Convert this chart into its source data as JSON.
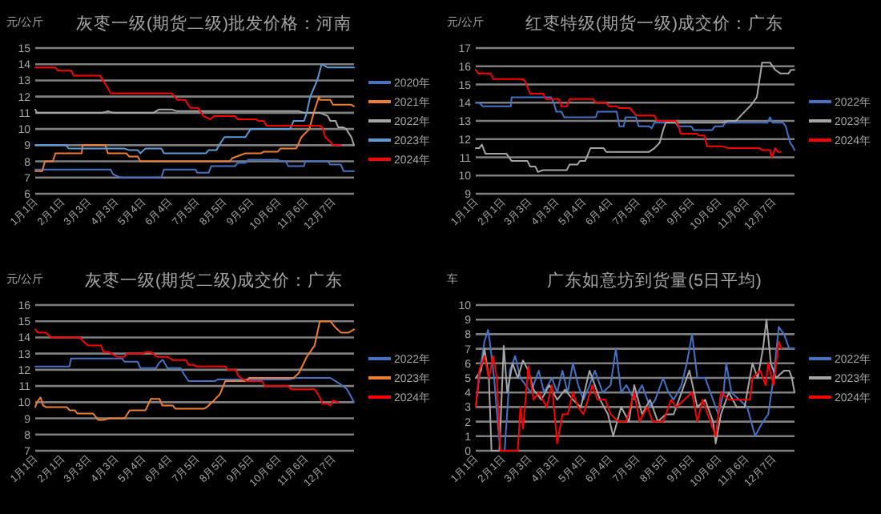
{
  "chart_data": [
    {
      "type": "line",
      "title": "灰枣一级(期货二级)批发价格：河南",
      "ylabel": "元/公斤",
      "xlim": [
        "--01-01",
        "--12-31"
      ],
      "ylim": [
        6,
        15
      ],
      "yticks": [
        6,
        7,
        8,
        9,
        10,
        11,
        12,
        13,
        14,
        15
      ],
      "grid": "y",
      "legend": "right",
      "xticks": [
        {
          "value": "--01-01",
          "label": "1月1日"
        },
        {
          "value": "--02-01",
          "label": "2月1日"
        },
        {
          "value": "--03-03",
          "label": "3月3日"
        },
        {
          "value": "--04-03",
          "label": "4月3日"
        },
        {
          "value": "--05-04",
          "label": "5月4日"
        },
        {
          "value": "--06-04",
          "label": "6月4日"
        },
        {
          "value": "--07-05",
          "label": "7月5日"
        },
        {
          "value": "--08-05",
          "label": "8月5日"
        },
        {
          "value": "--09-05",
          "label": "9月5日"
        },
        {
          "value": "--10-06",
          "label": "10月6日"
        },
        {
          "value": "--11-06",
          "label": "11月6日"
        },
        {
          "value": "--12-07",
          "label": "12月7日"
        }
      ],
      "series": [
        {
          "name": "2020年",
          "color": "#4472c4",
          "x": [
            "--01-01",
            "--03-28",
            "--03-31",
            "--04-08",
            "--05-25",
            "--05-28",
            "--07-03",
            "--07-05",
            "--07-18",
            "--07-21",
            "--08-17",
            "--08-20",
            "--08-29",
            "--09-01",
            "--10-05",
            "--10-08",
            "--10-14",
            "--10-17",
            "--11-04",
            "--11-05",
            "--12-01",
            "--12-04",
            "--12-16",
            "--12-19",
            "--12-31"
          ],
          "values": [
            7.5,
            7.5,
            7.2,
            7.0,
            7.0,
            7.5,
            7.5,
            7.3,
            7.3,
            7.7,
            7.7,
            7.9,
            7.9,
            8.1,
            8.1,
            8.0,
            8.0,
            7.7,
            7.7,
            8.0,
            8.0,
            7.8,
            7.8,
            7.4,
            7.4
          ]
        },
        {
          "name": "2021年",
          "color": "#ed7d31",
          "x": [
            "--01-01",
            "--01-09",
            "--01-12",
            "--01-21",
            "--01-24",
            "--02-23",
            "--02-24",
            "--03-22",
            "--03-25",
            "--04-15",
            "--04-18",
            "--04-28",
            "--05-01",
            "--08-11",
            "--08-14",
            "--08-29",
            "--09-16",
            "--09-19",
            "--10-05",
            "--10-08",
            "--10-26",
            "--11-01",
            "--11-10",
            "--11-15",
            "--11-21",
            "--11-22",
            "--12-04",
            "--12-07",
            "--12-28",
            "--12-31"
          ],
          "values": [
            7.4,
            7.4,
            8.0,
            8.0,
            8.5,
            8.5,
            9.0,
            9.0,
            8.5,
            8.5,
            8.3,
            8.3,
            8.0,
            8.0,
            8.2,
            8.5,
            8.5,
            8.6,
            8.6,
            8.8,
            8.8,
            9.5,
            10.0,
            11.0,
            12.0,
            11.8,
            11.8,
            11.5,
            11.5,
            11.4
          ]
        },
        {
          "name": "2022年",
          "color": "#a5a5a5",
          "x": [
            "--01-01",
            "--01-03",
            "--03-19",
            "--03-25",
            "--03-31",
            "--05-16",
            "--05-22",
            "--06-06",
            "--06-12",
            "--10-29",
            "--11-04",
            "--11-22",
            "--12-01",
            "--12-04",
            "--12-10",
            "--12-13",
            "--12-19",
            "--12-22",
            "--12-28",
            "--12-31"
          ],
          "values": [
            11.2,
            11.0,
            11.0,
            11.1,
            11.0,
            11.0,
            11.2,
            11.2,
            11.1,
            11.1,
            11.0,
            11.0,
            10.8,
            10.5,
            10.5,
            10.1,
            10.1,
            10.0,
            9.5,
            9.0
          ]
        },
        {
          "name": "2023年",
          "color": "#5b9bd5",
          "x": [
            "--01-01",
            "--02-05",
            "--02-08",
            "--04-12",
            "--04-18",
            "--04-28",
            "--05-01",
            "--05-07",
            "--05-25",
            "--05-28",
            "--07-15",
            "--07-18",
            "--07-27",
            "--07-30",
            "--08-05",
            "--08-29",
            "--09-04",
            "--10-19",
            "--10-23",
            "--11-04",
            "--11-07",
            "--11-11",
            "--11-19",
            "--11-24",
            "--12-01",
            "--12-31"
          ],
          "values": [
            9.0,
            9.0,
            8.8,
            8.8,
            8.7,
            8.7,
            8.5,
            8.8,
            8.8,
            8.5,
            8.5,
            8.7,
            8.7,
            9.0,
            9.5,
            9.5,
            10.0,
            10.0,
            10.5,
            10.5,
            11.0,
            12.0,
            13.0,
            14.0,
            13.8,
            13.8
          ]
        },
        {
          "name": "2024年",
          "color": "#ff0000",
          "x": [
            "--01-01",
            "--01-24",
            "--01-27",
            "--02-11",
            "--02-14",
            "--03-16",
            "--03-25",
            "--03-28",
            "--06-06",
            "--06-12",
            "--06-21",
            "--06-27",
            "--07-06",
            "--07-12",
            "--07-20",
            "--07-24",
            "--08-17",
            "--08-20",
            "--09-10",
            "--09-13",
            "--09-19",
            "--09-22",
            "--11-22",
            "--11-25",
            "--11-28",
            "--12-04",
            "--12-07",
            "--12-16"
          ],
          "values": [
            13.8,
            13.8,
            13.6,
            13.6,
            13.3,
            13.3,
            12.5,
            12.2,
            12.2,
            11.8,
            11.8,
            11.3,
            11.3,
            10.8,
            10.6,
            10.8,
            10.8,
            10.6,
            10.6,
            10.5,
            10.5,
            10.2,
            10.2,
            10.1,
            9.5,
            9.2,
            9.0,
            9.0
          ]
        }
      ]
    },
    {
      "type": "line",
      "title": "红枣特级(期货一级)成交价：广东",
      "ylabel": "元/公斤",
      "xlim": [
        "--01-01",
        "--12-31"
      ],
      "ylim": [
        9,
        17
      ],
      "yticks": [
        9,
        10,
        11,
        12,
        13,
        14,
        15,
        16,
        17
      ],
      "grid": "y",
      "legend": "right",
      "xticks": [
        {
          "value": "--01-01",
          "label": "1月1日"
        },
        {
          "value": "--02-01",
          "label": "2月1日"
        },
        {
          "value": "--03-03",
          "label": "3月3日"
        },
        {
          "value": "--04-03",
          "label": "4月3日"
        },
        {
          "value": "--05-04",
          "label": "5月4日"
        },
        {
          "value": "--06-04",
          "label": "6月4日"
        },
        {
          "value": "--07-05",
          "label": "7月5日"
        },
        {
          "value": "--08-05",
          "label": "8月5日"
        },
        {
          "value": "--09-05",
          "label": "9月5日"
        },
        {
          "value": "--10-06",
          "label": "10月6日"
        },
        {
          "value": "--11-06",
          "label": "11月6日"
        },
        {
          "value": "--12-07",
          "label": "12月7日"
        }
      ],
      "series": [
        {
          "name": "2022年",
          "color": "#4472c4",
          "x": [
            "--01-01",
            "--01-05",
            "--01-09",
            "--02-10",
            "--02-11",
            "--03-28",
            "--03-31",
            "--04-03",
            "--04-09",
            "--04-12",
            "--05-18",
            "--05-20",
            "--06-11",
            "--06-14",
            "--06-19",
            "--06-21",
            "--07-03",
            "--07-06",
            "--07-18",
            "--07-21",
            "--07-24",
            "--08-17",
            "--08-20",
            "--09-04",
            "--09-07",
            "--09-28",
            "--10-01",
            "--10-10",
            "--10-13",
            "--11-30",
            "--12-03",
            "--12-06",
            "--12-18",
            "--12-21",
            "--12-26",
            "--12-29",
            "--12-31"
          ],
          "values": [
            14.0,
            14.0,
            13.8,
            13.8,
            14.3,
            14.3,
            14.0,
            13.5,
            13.5,
            13.2,
            13.2,
            13.5,
            13.5,
            12.7,
            12.7,
            13.2,
            13.2,
            12.7,
            12.7,
            12.6,
            12.9,
            12.9,
            12.7,
            12.7,
            12.5,
            12.5,
            12.7,
            12.7,
            12.9,
            12.9,
            13.2,
            12.9,
            12.9,
            12.7,
            11.8,
            11.6,
            11.4
          ]
        },
        {
          "name": "2023年",
          "color": "#a5a5a5",
          "x": [
            "--01-01",
            "--01-05",
            "--01-08",
            "--01-12",
            "--02-05",
            "--02-11",
            "--03-01",
            "--03-04",
            "--03-10",
            "--03-13",
            "--03-19",
            "--04-15",
            "--04-18",
            "--04-27",
            "--04-30",
            "--05-06",
            "--05-12",
            "--05-27",
            "--05-30",
            "--07-18",
            "--07-24",
            "--07-30",
            "--08-03",
            "--08-06",
            "--10-10",
            "--10-16",
            "--10-25",
            "--10-31",
            "--11-06",
            "--11-12",
            "--11-18",
            "--11-24",
            "--12-03",
            "--12-09",
            "--12-15",
            "--12-24",
            "--12-27",
            "--12-31"
          ],
          "values": [
            11.5,
            11.5,
            11.7,
            11.2,
            11.2,
            10.8,
            10.8,
            10.5,
            10.5,
            10.2,
            10.3,
            10.3,
            10.6,
            10.6,
            10.8,
            10.8,
            11.5,
            11.5,
            11.3,
            11.3,
            11.5,
            11.8,
            12.5,
            12.9,
            12.9,
            13.0,
            13.0,
            13.3,
            13.6,
            13.9,
            14.3,
            16.2,
            16.2,
            15.8,
            15.6,
            15.6,
            15.8,
            15.8
          ]
        },
        {
          "name": "2024年",
          "color": "#ff0000",
          "x": [
            "--01-01",
            "--01-04",
            "--01-18",
            "--01-21",
            "--02-23",
            "--02-26",
            "--03-04",
            "--03-19",
            "--03-22",
            "--04-06",
            "--04-09",
            "--04-15",
            "--04-18",
            "--05-15",
            "--05-18",
            "--05-30",
            "--06-02",
            "--06-11",
            "--06-14",
            "--06-26",
            "--07-03",
            "--07-24",
            "--07-27",
            "--08-17",
            "--08-20",
            "--08-23",
            "--09-10",
            "--09-13",
            "--09-19",
            "--09-22",
            "--10-10",
            "--10-16",
            "--11-21",
            "--11-24",
            "--12-03",
            "--12-05",
            "--12-09",
            "--12-12",
            "--12-15"
          ],
          "values": [
            15.8,
            15.6,
            15.6,
            15.3,
            15.3,
            15.2,
            14.5,
            14.5,
            14.2,
            14.2,
            13.8,
            13.8,
            14.2,
            14.2,
            14.0,
            14.0,
            13.8,
            13.8,
            13.7,
            13.7,
            13.3,
            13.3,
            13.0,
            13.0,
            12.8,
            12.3,
            12.3,
            12.2,
            12.2,
            11.6,
            11.6,
            11.5,
            11.5,
            11.4,
            11.4,
            11.0,
            11.5,
            11.3,
            11.3
          ]
        }
      ]
    },
    {
      "type": "line",
      "title": "灰枣一级(期货二级)成交价：广东",
      "ylabel": "元/公斤",
      "xlim": [
        "--01-01",
        "--12-31"
      ],
      "ylim": [
        7,
        16
      ],
      "yticks": [
        7,
        8,
        9,
        10,
        11,
        12,
        13,
        14,
        15,
        16
      ],
      "grid": "y",
      "legend": "right",
      "xticks": [
        {
          "value": "--01-01",
          "label": "1月1日"
        },
        {
          "value": "--02-01",
          "label": "2月1日"
        },
        {
          "value": "--03-03",
          "label": "3月3日"
        },
        {
          "value": "--04-03",
          "label": "4月3日"
        },
        {
          "value": "--05-04",
          "label": "5月4日"
        },
        {
          "value": "--06-04",
          "label": "6月4日"
        },
        {
          "value": "--07-05",
          "label": "7月5日"
        },
        {
          "value": "--08-05",
          "label": "8月5日"
        },
        {
          "value": "--09-05",
          "label": "9月5日"
        },
        {
          "value": "--10-06",
          "label": "10月6日"
        },
        {
          "value": "--11-06",
          "label": "11月6日"
        },
        {
          "value": "--12-07",
          "label": "12月7日"
        }
      ],
      "series": [
        {
          "name": "2022年",
          "color": "#4472c4",
          "x": [
            "--01-01",
            "--02-09",
            "--02-11",
            "--04-10",
            "--04-13",
            "--04-28",
            "--05-01",
            "--05-19",
            "--05-22",
            "--05-26",
            "--05-27",
            "--06-01",
            "--06-16",
            "--06-19",
            "--06-25",
            "--07-25",
            "--07-28",
            "--10-17",
            "--10-26",
            "--12-04",
            "--12-13",
            "--12-23",
            "--12-31"
          ],
          "values": [
            12.2,
            12.2,
            12.7,
            12.7,
            12.5,
            12.5,
            12.1,
            12.1,
            12.4,
            12.6,
            12.6,
            12.1,
            12.1,
            11.8,
            11.3,
            11.3,
            11.4,
            11.4,
            11.5,
            11.5,
            11.2,
            10.8,
            10.0
          ]
        },
        {
          "name": "2023年",
          "color": "#ed7d31",
          "x": [
            "--01-01",
            "--01-03",
            "--01-07",
            "--01-10",
            "--01-13",
            "--02-06",
            "--02-09",
            "--02-15",
            "--02-18",
            "--03-08",
            "--03-14",
            "--03-20",
            "--03-26",
            "--04-13",
            "--04-19",
            "--05-07",
            "--05-13",
            "--05-23",
            "--05-26",
            "--06-07",
            "--06-10",
            "--07-13",
            "--07-16",
            "--07-22",
            "--07-31",
            "--08-06",
            "--08-30",
            "--09-02",
            "--10-23",
            "--10-29",
            "--11-07",
            "--11-16",
            "--11-22",
            "--12-04",
            "--12-10",
            "--12-16",
            "--12-25",
            "--12-31"
          ],
          "values": [
            9.7,
            10.0,
            10.3,
            9.8,
            9.7,
            9.7,
            9.5,
            9.5,
            9.3,
            9.3,
            8.9,
            8.9,
            9.0,
            9.0,
            9.5,
            9.5,
            10.2,
            10.2,
            9.8,
            9.8,
            9.6,
            9.6,
            9.7,
            10.0,
            10.5,
            11.3,
            11.3,
            11.5,
            11.5,
            11.8,
            12.8,
            13.5,
            15.0,
            15.0,
            14.6,
            14.3,
            14.3,
            14.5
          ]
        },
        {
          "name": "2024年",
          "color": "#ff0000",
          "x": [
            "--01-01",
            "--01-04",
            "--01-13",
            "--01-19",
            "--02-21",
            "--02-24",
            "--03-02",
            "--03-17",
            "--03-20",
            "--03-26",
            "--04-04",
            "--04-13",
            "--04-16",
            "--05-04",
            "--05-07",
            "--05-13",
            "--05-20",
            "--06-01",
            "--06-07",
            "--06-22",
            "--06-25",
            "--07-01",
            "--07-04",
            "--08-06",
            "--08-09",
            "--08-18",
            "--08-21",
            "--08-27",
            "--08-30",
            "--09-17",
            "--09-20",
            "--10-17",
            "--10-20",
            "--11-16",
            "--11-22",
            "--11-25",
            "--12-01",
            "--12-04",
            "--12-07",
            "--12-13"
          ],
          "values": [
            14.5,
            14.3,
            14.3,
            14.0,
            14.0,
            13.8,
            13.5,
            13.5,
            13.1,
            13.1,
            12.8,
            12.8,
            13.0,
            13.0,
            13.1,
            13.1,
            12.8,
            12.8,
            12.6,
            12.6,
            12.3,
            12.3,
            12.2,
            12.2,
            12.0,
            12.0,
            11.6,
            11.4,
            11.3,
            11.3,
            11.0,
            11.0,
            10.8,
            10.8,
            10.3,
            9.9,
            9.9,
            9.8,
            10.1,
            10.0
          ]
        }
      ]
    },
    {
      "type": "line",
      "title": "广东如意坊到货量(5日平均)",
      "ylabel": "车",
      "xlim": [
        "--01-01",
        "--12-31"
      ],
      "ylim": [
        0,
        10
      ],
      "yticks": [
        0,
        1,
        2,
        3,
        4,
        5,
        6,
        7,
        8,
        9,
        10
      ],
      "grid": "y",
      "legend": "right",
      "xticks": [
        {
          "value": "--01-01",
          "label": "1月1日"
        },
        {
          "value": "--02-01",
          "label": "2月1日"
        },
        {
          "value": "--03-03",
          "label": "3月3日"
        },
        {
          "value": "--04-03",
          "label": "4月3日"
        },
        {
          "value": "--05-04",
          "label": "5月4日"
        },
        {
          "value": "--06-04",
          "label": "6月4日"
        },
        {
          "value": "--07-05",
          "label": "7月5日"
        },
        {
          "value": "--08-05",
          "label": "8月5日"
        },
        {
          "value": "--09-05",
          "label": "9月5日"
        },
        {
          "value": "--10-06",
          "label": "10月6日"
        },
        {
          "value": "--11-06",
          "label": "11月6日"
        },
        {
          "value": "--12-07",
          "label": "12月7日"
        }
      ],
      "series": [
        {
          "name": "2022年",
          "color": "#4472c4",
          "x": [
            "--01-01",
            "--01-07",
            "--01-11",
            "--01-15",
            "--01-17",
            "--01-22",
            "--01-26",
            "--01-29",
            "--02-03",
            "--02-09",
            "--02-15",
            "--02-21",
            "--03-05",
            "--03-14",
            "--03-20",
            "--03-29",
            "--04-04",
            "--04-10",
            "--04-16",
            "--04-22",
            "--04-28",
            "--05-04",
            "--05-11",
            "--05-17",
            "--05-26",
            "--06-04",
            "--06-10",
            "--06-16",
            "--06-22",
            "--07-01",
            "--07-10",
            "--07-19",
            "--07-25",
            "--08-03",
            "--08-09",
            "--08-15",
            "--08-24",
            "--08-30",
            "--09-05",
            "--09-11",
            "--09-20",
            "--09-29",
            "--10-05",
            "--10-11",
            "--10-14",
            "--10-20",
            "--10-29",
            "--11-07",
            "--11-16",
            "--11-25",
            "--12-01",
            "--12-07",
            "--12-13",
            "--12-19",
            "--12-25",
            "--12-31"
          ],
          "values": [
            3,
            6,
            7.5,
            8.3,
            7.5,
            5,
            2,
            0,
            0,
            5.5,
            6.5,
            5,
            4,
            5.5,
            4,
            5,
            4,
            5.5,
            4,
            6,
            4.5,
            3.5,
            4.5,
            5.5,
            4,
            4.5,
            7,
            4,
            4.5,
            3.5,
            4.5,
            3,
            3.5,
            5,
            4,
            3.5,
            4.5,
            6,
            8,
            5,
            5,
            3.5,
            2.5,
            4,
            6,
            4,
            3.5,
            3,
            1,
            2,
            2.5,
            5,
            8.5,
            8,
            7,
            7
          ]
        },
        {
          "name": "2023年",
          "color": "#a5a5a5",
          "x": [
            "--01-01",
            "--01-07",
            "--01-11",
            "--01-16",
            "--01-19",
            "--01-28",
            "--02-02",
            "--02-06",
            "--02-12",
            "--02-18",
            "--02-24",
            "--03-02",
            "--03-08",
            "--03-17",
            "--03-26",
            "--04-04",
            "--04-13",
            "--04-22",
            "--05-01",
            "--05-11",
            "--05-17",
            "--05-23",
            "--06-01",
            "--06-07",
            "--06-16",
            "--06-25",
            "--07-01",
            "--07-10",
            "--07-19",
            "--07-28",
            "--08-06",
            "--08-15",
            "--08-24",
            "--09-02",
            "--09-11",
            "--09-20",
            "--09-29",
            "--10-02",
            "--10-08",
            "--10-17",
            "--10-26",
            "--11-04",
            "--11-13",
            "--11-19",
            "--11-25",
            "--11-29",
            "--12-04",
            "--12-10",
            "--12-19",
            "--12-25",
            "--12-28",
            "--12-31"
          ],
          "values": [
            5,
            5.5,
            7,
            5,
            0,
            0,
            7.2,
            4,
            6,
            5,
            6.2,
            5.5,
            4.2,
            3.5,
            4.5,
            3.5,
            4.2,
            3.5,
            3,
            5.5,
            4.5,
            3.5,
            2.5,
            1,
            3,
            2,
            4.5,
            2.5,
            3.5,
            2,
            2.5,
            2.5,
            4,
            5.5,
            3,
            3.5,
            2,
            0.5,
            2.5,
            4,
            3,
            3,
            6,
            5,
            7,
            9,
            6,
            5,
            5.5,
            5.5,
            5,
            4
          ]
        },
        {
          "name": "2024年",
          "color": "#ff0000",
          "x": [
            "--01-01",
            "--01-05",
            "--01-11",
            "--01-16",
            "--01-21",
            "--01-25",
            "--01-29",
            "--02-18",
            "--02-21",
            "--02-24",
            "--03-02",
            "--03-08",
            "--03-14",
            "--03-23",
            "--03-29",
            "--04-04",
            "--04-10",
            "--04-16",
            "--04-22",
            "--04-28",
            "--05-04",
            "--05-14",
            "--05-20",
            "--05-29",
            "--06-04",
            "--06-13",
            "--06-22",
            "--07-01",
            "--07-07",
            "--07-16",
            "--07-22",
            "--08-03",
            "--08-12",
            "--08-18",
            "--08-27",
            "--09-05",
            "--09-11",
            "--09-17",
            "--09-26",
            "--10-02",
            "--10-08",
            "--10-17",
            "--10-26",
            "--11-04",
            "--11-10",
            "--11-13",
            "--11-22",
            "--11-28",
            "--12-01",
            "--12-07",
            "--12-13",
            "--12-16"
          ],
          "values": [
            3,
            5.5,
            6.5,
            5,
            6.5,
            5,
            0,
            0,
            3,
            1.5,
            5.8,
            3.5,
            4,
            3,
            4.5,
            0.5,
            2.5,
            2.5,
            4,
            3,
            2.5,
            4.5,
            3.5,
            3.5,
            2.5,
            2,
            2,
            4,
            2,
            3,
            2,
            2,
            3.5,
            3,
            3.5,
            4,
            2,
            3.5,
            2,
            1,
            4,
            3.5,
            3.5,
            3.5,
            3.5,
            5,
            5.5,
            4.5,
            6,
            4.5,
            7.5,
            7
          ]
        }
      ]
    }
  ]
}
